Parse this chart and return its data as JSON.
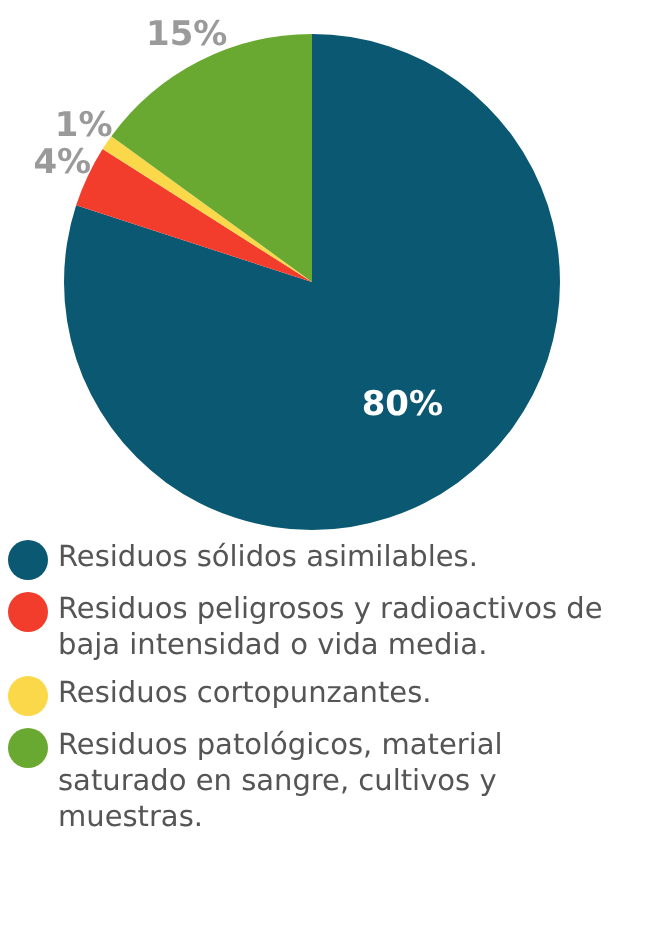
{
  "chart_data": {
    "type": "pie",
    "categories": [
      "Residuos sólidos asimilables.",
      "Residuos peligrosos y radioactivos de baja intensidad o vida media.",
      "Residuos cortopunzantes.",
      "Residuos patológicos, material saturado en sangre, cultivos y muestras."
    ],
    "values": [
      80,
      4,
      1,
      15
    ],
    "colors": [
      "#0b5873",
      "#f23c2c",
      "#fbd84a",
      "#6aa931"
    ],
    "value_labels": [
      "80%",
      "4%",
      "1%",
      "15%"
    ],
    "legend": "bottom"
  }
}
